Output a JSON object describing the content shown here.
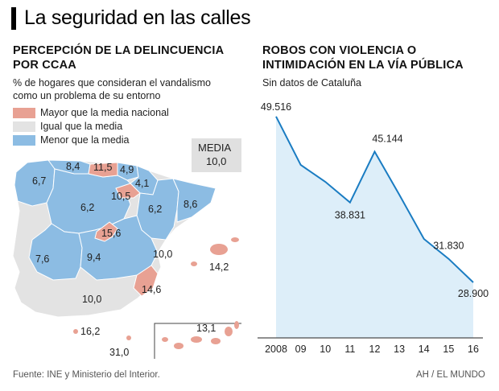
{
  "title": "La seguridad en las calles",
  "left": {
    "heading_line1": "PERCEPCIÓN DE LA DELINCUENCIA",
    "heading_line2": "POR CCAA",
    "subtitle_line1": "% de hogares que consideran el vandalismo",
    "subtitle_line2": "como un problema de su entorno",
    "legend": [
      {
        "label": "Mayor que la media nacional",
        "color": "#e8a193"
      },
      {
        "label": "Igual que la media",
        "color": "#e3e3e3"
      },
      {
        "label": "Menor que la media",
        "color": "#8cbce3"
      }
    ],
    "media_label": "MEDIA",
    "media_value": "10,0",
    "regions": [
      {
        "name": "Galicia",
        "value": "6,7",
        "category": "menor"
      },
      {
        "name": "Asturias",
        "value": "8,4",
        "category": "menor"
      },
      {
        "name": "Cantabria",
        "value": "11,5",
        "category": "mayor"
      },
      {
        "name": "País Vasco",
        "value": "4,9",
        "category": "menor"
      },
      {
        "name": "Navarra",
        "value": "4,1",
        "category": "menor"
      },
      {
        "name": "La Rioja",
        "value": "10,5",
        "category": "mayor"
      },
      {
        "name": "Castilla y León",
        "value": "6,2",
        "category": "menor"
      },
      {
        "name": "Aragón",
        "value": "6,2",
        "category": "menor"
      },
      {
        "name": "Cataluña",
        "value": "8,6",
        "category": "menor"
      },
      {
        "name": "Madrid",
        "value": "15,6",
        "category": "mayor"
      },
      {
        "name": "Extremadura",
        "value": "7,6",
        "category": "menor"
      },
      {
        "name": "Castilla-La Mancha",
        "value": "9,4",
        "category": "menor"
      },
      {
        "name": "C. Valenciana",
        "value": "10,0",
        "category": "igual"
      },
      {
        "name": "Baleares",
        "value": "14,2",
        "category": "mayor"
      },
      {
        "name": "Murcia",
        "value": "14,6",
        "category": "mayor"
      },
      {
        "name": "Andalucía",
        "value": "10,0",
        "category": "igual"
      },
      {
        "name": "Ceuta",
        "value": "16,2",
        "category": "mayor"
      },
      {
        "name": "Melilla",
        "value": "31,0",
        "category": "mayor"
      },
      {
        "name": "Canarias",
        "value": "13,1",
        "category": "mayor"
      }
    ]
  },
  "right": {
    "heading_line1": "ROBOS CON VIOLENCIA O",
    "heading_line2": "INTIMIDACIÓN EN LA VÍA PÚBLICA",
    "subtitle": "Sin datos de Cataluña"
  },
  "chart_data": {
    "type": "area",
    "title": "ROBOS CON VIOLENCIA O INTIMIDACIÓN EN LA VÍA PÚBLICA",
    "subtitle": "Sin datos de Cataluña",
    "x": [
      "2008",
      "09",
      "10",
      "11",
      "12",
      "13",
      "14",
      "15",
      "16"
    ],
    "values": [
      49516,
      43500,
      41400,
      38831,
      45144,
      39800,
      34300,
      31830,
      28900
    ],
    "labels": {
      "0": "49.516",
      "3": "38.831",
      "4": "45.144",
      "7": "31.830",
      "8": "28.900"
    },
    "ylim": [
      22000,
      51000
    ],
    "xlabel": "",
    "ylabel": "",
    "line_color": "#1a7cc2",
    "fill_color": "#ddeef9"
  },
  "footer_left": "Fuente: INE y Ministerio del Interior.",
  "footer_right": "AH / EL MUNDO"
}
